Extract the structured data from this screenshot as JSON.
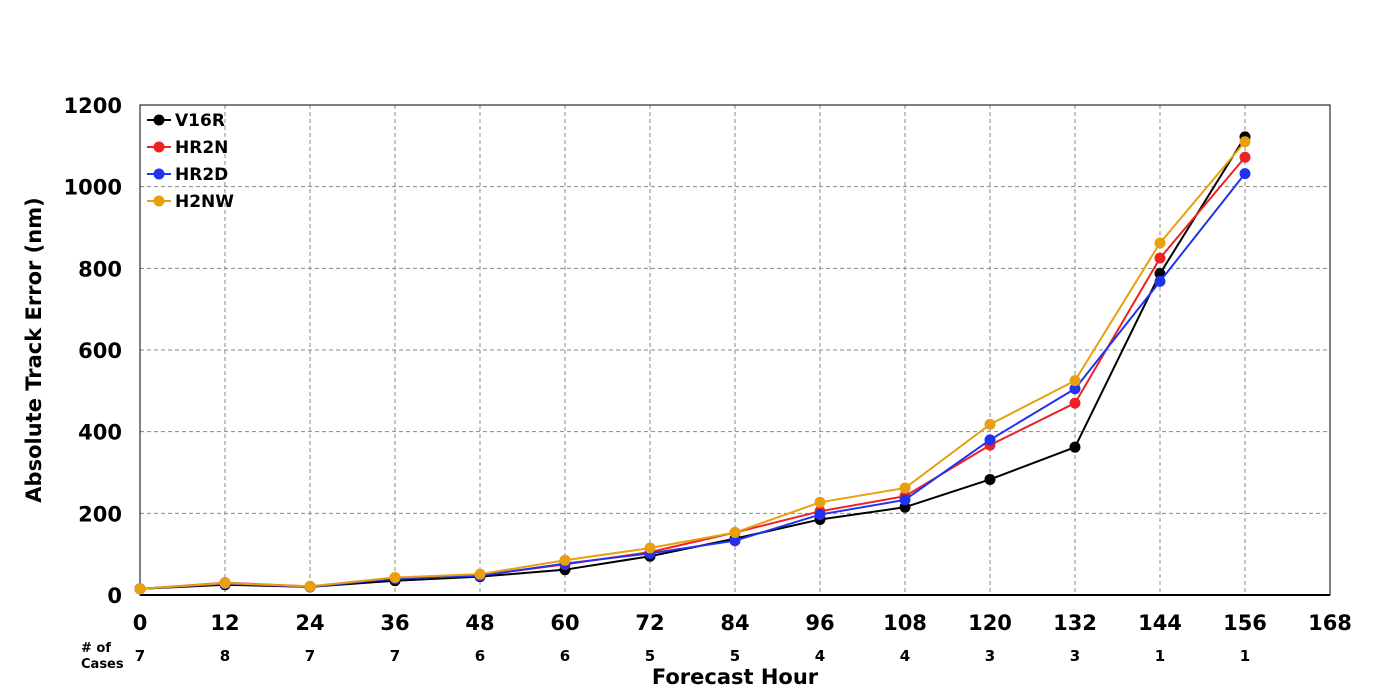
{
  "chart_data": {
    "type": "line",
    "title": "",
    "xlabel": "Forecast Hour",
    "ylabel": "Absolute Track Error (nm)",
    "xlim": [
      0,
      168
    ],
    "ylim": [
      0,
      1200
    ],
    "x_ticks": [
      0,
      12,
      24,
      36,
      48,
      60,
      72,
      84,
      96,
      108,
      120,
      132,
      144,
      156,
      168
    ],
    "y_ticks": [
      0,
      200,
      400,
      600,
      800,
      1000,
      1200
    ],
    "grid": true,
    "legend_position": "top-left",
    "x": [
      0,
      12,
      24,
      36,
      48,
      60,
      72,
      84,
      96,
      108,
      120,
      132,
      144,
      156
    ],
    "series": [
      {
        "name": "V16R",
        "color": "#000000",
        "values": [
          15,
          25,
          20,
          35,
          45,
          62,
          95,
          138,
          185,
          215,
          283,
          362,
          787,
          1122
        ]
      },
      {
        "name": "HR2N",
        "color": "#ee2222",
        "values": [
          15,
          30,
          21,
          42,
          48,
          75,
          105,
          153,
          205,
          242,
          367,
          470,
          825,
          1072
        ]
      },
      {
        "name": "HR2D",
        "color": "#2233ee",
        "values": [
          15,
          28,
          20,
          40,
          47,
          77,
          102,
          133,
          197,
          233,
          380,
          505,
          768,
          1032
        ]
      },
      {
        "name": "H2NW",
        "color": "#e8a010",
        "values": [
          15,
          29,
          21,
          43,
          51,
          85,
          115,
          153,
          227,
          262,
          418,
          525,
          862,
          1110
        ]
      }
    ],
    "cases_label": "# of\nCases",
    "cases_label_lines": [
      "# of",
      "Cases"
    ],
    "cases": [
      "7",
      "8",
      "7",
      "7",
      "6",
      "6",
      "5",
      "5",
      "4",
      "4",
      "3",
      "3",
      "1",
      "1"
    ]
  }
}
